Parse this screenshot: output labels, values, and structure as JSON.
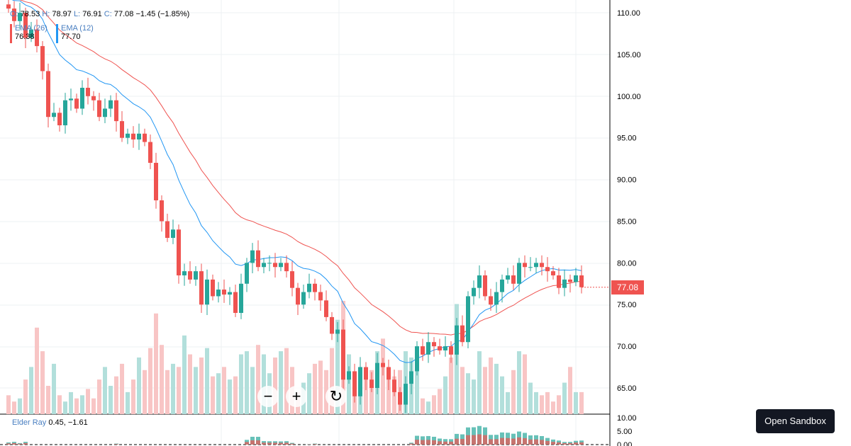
{
  "legend": {
    "o_label": "O:",
    "o": "78.53",
    "h_label": "H:",
    "h": "78.97",
    "l_label": "L:",
    "l": "76.91",
    "c_label": "C:",
    "c": "77.08",
    "change": "−1.45 (−1.85%)"
  },
  "ema26": {
    "label": "EMA (26)",
    "value": "76.38",
    "color": "#ef5350"
  },
  "ema12": {
    "label": "EMA (12)",
    "value": "77.70",
    "color": "#2196f3"
  },
  "elder": {
    "label": "Elder Ray",
    "value": "0.45, −1.61"
  },
  "last_price": "77.08",
  "price_axis": [
    "110.00",
    "105.00",
    "100.00",
    "95.00",
    "90.00",
    "85.00",
    "80.00",
    "75.00",
    "70.00",
    "65.00"
  ],
  "elder_axis": [
    "10.00",
    "5.00",
    "0.00"
  ],
  "controls": {
    "zoom_out": "−",
    "zoom_in": "+",
    "reset": "↻"
  },
  "sandbox_button": "Open Sandbox",
  "colors": {
    "up": "#26a69a",
    "down": "#ef5350",
    "up_vol": "#b2dfdb",
    "down_vol": "#f8c5c5"
  },
  "chart_data": {
    "type": "candlestick",
    "price_range": [
      62,
      111
    ],
    "closes": [
      110.5,
      109,
      110,
      107,
      108,
      106,
      103,
      97.5,
      98,
      96.5,
      99.5,
      99.7,
      98.5,
      101,
      100,
      99.5,
      97.5,
      98.5,
      99.5,
      97,
      95,
      95.5,
      94.8,
      95.5,
      94.5,
      92,
      87.5,
      85,
      83,
      84,
      78.5,
      79,
      78,
      79,
      75,
      78,
      76,
      76.8,
      76.2,
      76.5,
      74,
      77.5,
      80,
      81.5,
      79.5,
      80,
      80,
      79.5,
      80,
      79,
      77,
      75,
      76.5,
      77.5,
      76.5,
      75.5,
      73.5,
      71.5,
      72,
      66,
      67,
      64,
      67.5,
      66,
      65,
      68,
      67.5,
      66,
      64.5,
      63,
      65.5,
      67,
      70,
      69,
      70.5,
      70,
      69.5,
      70,
      69,
      72.5,
      70.5,
      76,
      77,
      78.5,
      76,
      75,
      76.5,
      78,
      78.5,
      77.5,
      80,
      79.5,
      79.5,
      80,
      79.5,
      79,
      78.5,
      77,
      78,
      77.7,
      78.5,
      77.08
    ],
    "volumes": [
      12,
      8,
      10,
      22,
      30,
      55,
      40,
      18,
      32,
      12,
      8,
      14,
      10,
      12,
      16,
      10,
      22,
      30,
      18,
      24,
      32,
      14,
      22,
      36,
      28,
      42,
      64,
      44,
      28,
      32,
      30,
      50,
      38,
      30,
      36,
      42,
      24,
      26,
      30,
      22,
      24,
      38,
      40,
      30,
      44,
      38,
      26,
      36,
      40,
      42,
      30,
      14,
      20,
      26,
      32,
      34,
      28,
      42,
      60,
      72,
      38,
      26,
      30,
      24,
      28,
      40,
      48,
      30,
      24,
      28,
      40,
      36,
      30,
      10,
      8,
      12,
      16,
      24,
      36,
      70,
      30,
      26,
      22,
      40,
      30,
      36,
      32,
      24,
      14,
      28,
      40,
      38,
      20,
      14,
      12,
      14,
      8,
      12,
      20,
      30,
      14,
      14
    ]
  }
}
